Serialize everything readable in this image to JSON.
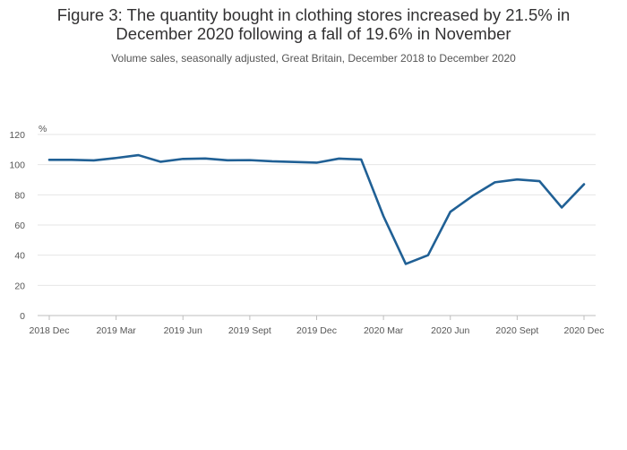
{
  "chart_data": {
    "type": "line",
    "title_lines": [
      "Figure 3: The quantity bought in clothing stores increased by 21.5% in",
      "December 2020 following a fall of 19.6% in November"
    ],
    "subtitle": "Volume sales, seasonally adjusted, Great Britain, December 2018 to December 2020",
    "ylabel": "%",
    "ylim": [
      0,
      120
    ],
    "yticks": [
      0,
      20,
      40,
      60,
      80,
      100,
      120
    ],
    "grid": true,
    "x_tick_labels": [
      "2018 Dec",
      "2019 Mar",
      "2019 Jun",
      "2019 Sept",
      "2019 Dec",
      "2020 Mar",
      "2020 Jun",
      "2020 Sept",
      "2020 Dec"
    ],
    "x_tick_positions": [
      0,
      3,
      6,
      9,
      12,
      15,
      18,
      21,
      24
    ],
    "color": "#206095",
    "series": [
      {
        "x": [
          "2018 Dec",
          "2019 Jan",
          "2019 Feb",
          "2019 Mar",
          "2019 Apr",
          "2019 May",
          "2019 Jun",
          "2019 Jul",
          "2019 Aug",
          "2019 Sept",
          "2019 Oct",
          "2019 Nov",
          "2019 Dec",
          "2020 Jan",
          "2020 Feb",
          "2020 Mar",
          "2020 Apr",
          "2020 May",
          "2020 Jun",
          "2020 Jul",
          "2020 Aug",
          "2020 Sept",
          "2020 Oct",
          "2020 Nov",
          "2020 Dec"
        ],
        "values": [
          103.2,
          103.2,
          102.8,
          104.4,
          106.3,
          101.9,
          103.8,
          104.1,
          102.9,
          103.0,
          102.2,
          101.8,
          101.3,
          104.0,
          103.4,
          65.8,
          34.2,
          40.0,
          68.7,
          79.3,
          88.3,
          90.2,
          89.1,
          71.6,
          87.0
        ]
      }
    ]
  }
}
